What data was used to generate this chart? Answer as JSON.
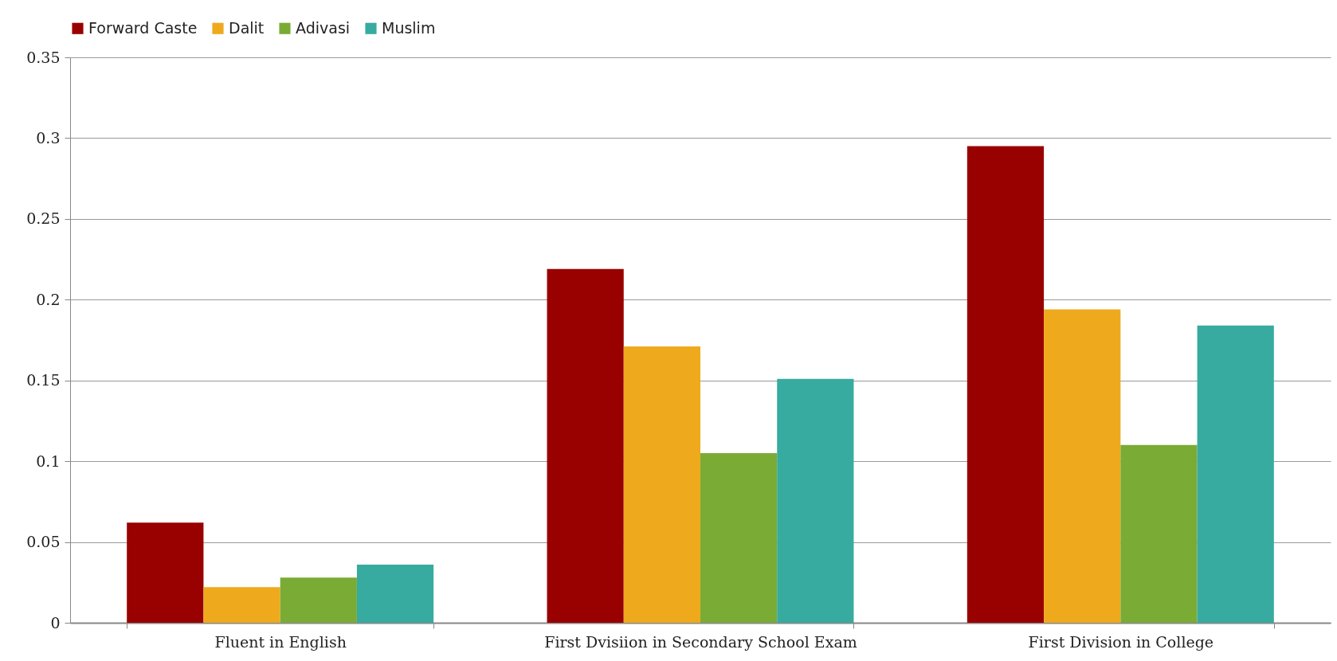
{
  "chart_data": {
    "type": "bar",
    "categories": [
      "Fluent in English",
      "First Dvisiion in Secondary School Exam",
      "First Division in College"
    ],
    "series": [
      {
        "name": "Forward Caste",
        "color": "#990000",
        "values": [
          0.062,
          0.219,
          0.295
        ]
      },
      {
        "name": "Dalit",
        "color": "#eeaa1c",
        "values": [
          0.022,
          0.171,
          0.194
        ]
      },
      {
        "name": "Adivasi",
        "color": "#7aab35",
        "values": [
          0.028,
          0.105,
          0.11
        ]
      },
      {
        "name": "Muslim",
        "color": "#37ab9f",
        "values": [
          0.036,
          0.151,
          0.184
        ]
      }
    ],
    "ylim": [
      0,
      0.35
    ],
    "yticks": [
      0,
      0.05,
      0.1,
      0.15,
      0.2,
      0.25,
      0.3,
      0.35
    ],
    "grid": "y",
    "legend": "top"
  }
}
